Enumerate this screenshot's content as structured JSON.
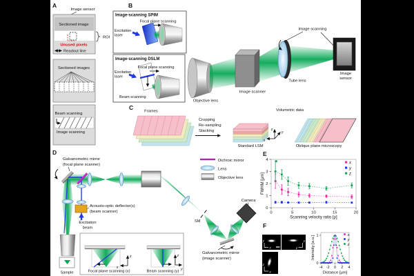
{
  "figure": {
    "panel_a": {
      "label": "A",
      "image_sensor": "Image sensor",
      "sectioned_image": "Sectioned image",
      "unused_pixels": "Unused pixels",
      "readout_line": "Readout line",
      "roi": "ROI",
      "sectioned_images": "Sectioned images",
      "beam_scanning": "Beam scanning",
      "image_scanning": "Image scanning"
    },
    "panel_b": {
      "label": "B",
      "spim_title": "Image-scanning SPIM",
      "dslm_title": "Image-scanning DSLM",
      "focal_plane_scanning": "Focal plane scanning",
      "excitation_line1": "Excitation",
      "excitation_line2": "laser",
      "beam_scanning": "Beam scanning",
      "objective_lens": "Objective lens",
      "image_scanner": "Image scanner",
      "image_scanning": "Image scanning",
      "tube_lens": "Tube lens",
      "image_sensor_line1": "Image",
      "image_sensor_line2": "sensor"
    },
    "panel_c": {
      "label": "C",
      "frames": "Frames",
      "process_line1": "Cropping",
      "process_line2": "Re-sampling",
      "process_line3": "Stacking",
      "standard_lsm": "Standard LSM",
      "volumetric_data": "Volumetric data",
      "oblique_plane": "Oblique plane microscopy",
      "axis_x": "x",
      "axis_y": "y",
      "axis_z": "z"
    },
    "panel_d": {
      "label": "D",
      "galvo_focal_line1": "Galvanometric mirror",
      "galvo_focal_line2": "(focal plane scanner)",
      "aod_line1": "Acousto-optic deflector(s)",
      "aod_line2": "(beam scanner)",
      "excitation_line1": "Excitation",
      "excitation_line2": "beam",
      "sample": "Sample",
      "sm": "SM",
      "camera": "Camera",
      "galvo_image_line1": "Galvanometric mirror",
      "galvo_image_line2": "(image scanner)",
      "legend_dichroic": "Dichroic mirror",
      "legend_lens": "Lens",
      "legend_objective": "Objective lens",
      "inset_focal": "Focal plane scanning (x)",
      "inset_beam": "Beam scanning (y)",
      "axis_x": "x",
      "axis_y": "y",
      "axis_z": "z"
    },
    "panel_e": {
      "label": "E"
    },
    "panel_f": {
      "label": "F",
      "img_axis_x": "x",
      "img_axis_y": "y",
      "img_axis_z": "z"
    }
  },
  "colors": {
    "beam_green": "#00a550",
    "excitation_blue": "#2238e0",
    "dichroic_magenta": "#cb2fd6",
    "aod_orange": "#e6a51e",
    "series_x": "#ee2fa8",
    "series_y": "#2438e8",
    "series_z": "#1fa35c"
  },
  "chart_data": [
    {
      "id": "E",
      "type": "scatter",
      "xlabel": "Scanning velocity ratio [ρ]",
      "ylabel": "FWHM [μm]",
      "xlim": [
        0,
        20
      ],
      "ylim": [
        0,
        4
      ],
      "xticks": [
        0,
        5,
        10,
        15,
        20
      ],
      "yticks": [
        0,
        1,
        2,
        3,
        4
      ],
      "legend_position": "top-right",
      "grid": false,
      "series": [
        {
          "name": "x",
          "color": "#ee2fa8",
          "x": [
            1,
            2.5,
            4,
            6.5,
            9,
            13,
            19
          ],
          "y": [
            2.2,
            1.5,
            1.3,
            1.1,
            1.0,
            0.95,
            0.9
          ],
          "yerr": [
            0.6,
            0.4,
            0.3,
            0.2,
            0.15,
            0.1,
            0.15
          ]
        },
        {
          "name": "y",
          "color": "#2438e8",
          "x": [
            1,
            2.5,
            4,
            6.5,
            9,
            13,
            19
          ],
          "y": [
            0.45,
            0.45,
            0.43,
            0.42,
            0.42,
            0.45,
            0.42
          ],
          "yerr": [
            0.08,
            0.08,
            0.06,
            0.05,
            0.05,
            0.08,
            0.05
          ]
        },
        {
          "name": "z",
          "color": "#1fa35c",
          "x": [
            1,
            2.5,
            4,
            6.5,
            9,
            13,
            19
          ],
          "y": [
            3.0,
            2.75,
            2.2,
            1.85,
            1.78,
            1.6,
            1.85
          ],
          "yerr": [
            0.85,
            0.4,
            0.35,
            0.25,
            0.22,
            0.15,
            0.2
          ],
          "extra_points": [
            [
              1.2,
              3.85
            ]
          ]
        }
      ]
    },
    {
      "id": "F",
      "type": "line",
      "xlabel": "Distance [μm]",
      "ylabel": "Intensity [a.u.]",
      "xlim": [
        -4,
        4
      ],
      "ylim": [
        0,
        1.1
      ],
      "xticks": [
        -4,
        -2,
        0,
        2,
        4
      ],
      "yticks": [
        0,
        1
      ],
      "legend_position": "top-right",
      "series": [
        {
          "name": "x",
          "color": "#ee2fa8",
          "profile": "gaussian",
          "peak": 1.0,
          "sigma": 0.55,
          "fwhm_um": 1.3
        },
        {
          "name": "y",
          "color": "#2438e8",
          "profile": "gaussian",
          "peak": 1.0,
          "sigma": 0.32,
          "fwhm_um": 0.75
        },
        {
          "name": "z",
          "color": "#1fa35c",
          "profile": "gaussian",
          "peak": 1.0,
          "sigma": 1.25,
          "fwhm_um": 2.9
        }
      ]
    }
  ]
}
